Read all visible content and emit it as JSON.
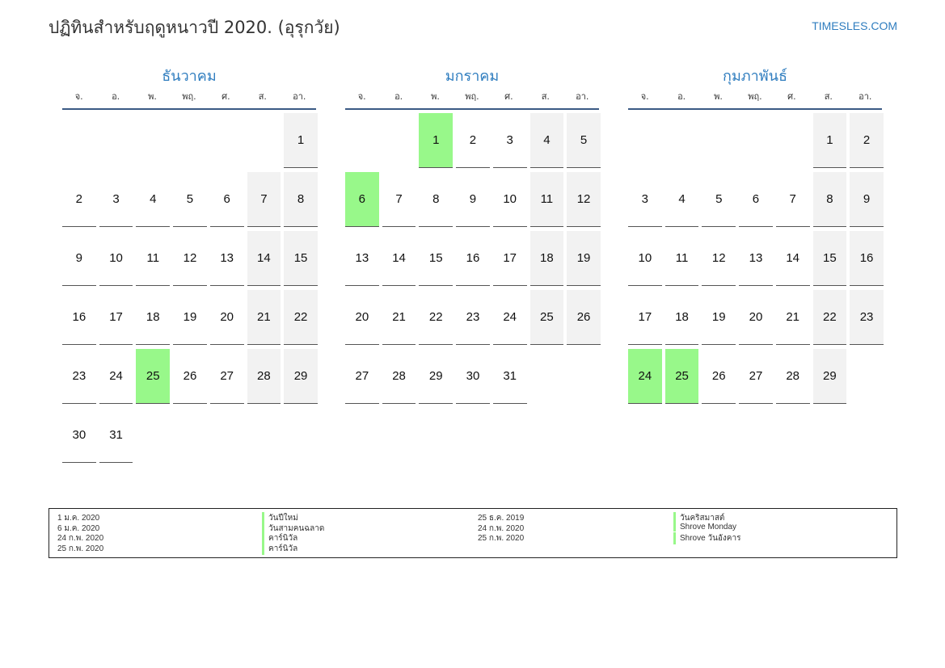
{
  "header": {
    "title": "ปฏิทินสำหรับฤดูหนาวปี 2020. (อุรุกวัย)",
    "site": "TIMESLES.COM"
  },
  "colors": {
    "accent": "#2f7dbf",
    "holiday": "#98f88a",
    "weekend": "#f2f2f2",
    "rule": "#3b5a84"
  },
  "weekdays": [
    "จ.",
    "อ.",
    "พ.",
    "พฤ.",
    "ศ.",
    "ส.",
    "อา."
  ],
  "months": [
    {
      "name": "ธันวาคม",
      "offset": 6,
      "days": 31,
      "holidays": [
        25
      ]
    },
    {
      "name": "มกราคม",
      "offset": 2,
      "days": 31,
      "holidays": [
        1,
        6
      ]
    },
    {
      "name": "กุมภาพันธ์",
      "offset": 5,
      "days": 29,
      "holidays": [
        24,
        25
      ]
    }
  ],
  "legend": [
    {
      "date": "1 ม.ค. 2020",
      "name": "วันปีใหม่",
      "date2": "25 ธ.ค. 2019",
      "name2": "วันคริสมาสต์"
    },
    {
      "date": "6 ม.ค. 2020",
      "name": "วันสามคนฉลาด",
      "date2": "24 ก.พ. 2020",
      "name2": "Shrove Monday"
    },
    {
      "date": "24 ก.พ. 2020",
      "name": "คาร์นิวัล",
      "date2": "25 ก.พ. 2020",
      "name2": "Shrove วันอังคาร"
    },
    {
      "date": "25 ก.พ. 2020",
      "name": "คาร์นิวัล",
      "date2": "",
      "name2": ""
    }
  ]
}
